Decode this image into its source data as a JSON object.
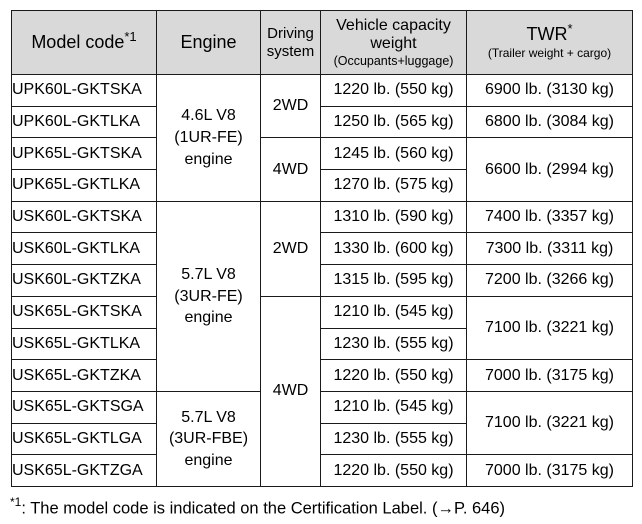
{
  "table": {
    "headers": {
      "model_code": "Model code",
      "model_code_mark": "*1",
      "engine": "Engine",
      "driving_line1": "Driving",
      "driving_line2": "system",
      "capacity_line1": "Vehicle capacity",
      "capacity_line2": "weight",
      "capacity_note": "(Occupants+luggage)",
      "twr": "TWR",
      "twr_mark": "*",
      "twr_note": "(Trailer weight + cargo)"
    },
    "engines": [
      {
        "line1": "4.6L V8",
        "line2": "(1UR-FE)",
        "line3": "engine"
      },
      {
        "line1": "5.7L V8",
        "line2": "(3UR-FE)",
        "line3": "engine"
      },
      {
        "line1": "5.7L V8",
        "line2": "(3UR-FBE)",
        "line3": "engine"
      }
    ],
    "driving": [
      "2WD",
      "4WD",
      "2WD",
      "4WD"
    ],
    "rows": [
      {
        "model": "UPK60L-GKTSKA",
        "capacity": "1220 lb. (550 kg)"
      },
      {
        "model": "UPK60L-GKTLKA",
        "capacity": "1250 lb. (565 kg)"
      },
      {
        "model": "UPK65L-GKTSKA",
        "capacity": "1245 lb. (560 kg)"
      },
      {
        "model": "UPK65L-GKTLKA",
        "capacity": "1270 lb. (575 kg)"
      },
      {
        "model": "USK60L-GKTSKA",
        "capacity": "1310 lb. (590 kg)"
      },
      {
        "model": "USK60L-GKTLKA",
        "capacity": "1330 lb. (600 kg)"
      },
      {
        "model": "USK60L-GKTZKA",
        "capacity": "1315 lb. (595 kg)"
      },
      {
        "model": "USK65L-GKTSKA",
        "capacity": "1210 lb. (545 kg)"
      },
      {
        "model": "USK65L-GKTLKA",
        "capacity": "1230 lb. (555 kg)"
      },
      {
        "model": "USK65L-GKTZKA",
        "capacity": "1220 lb. (550 kg)"
      },
      {
        "model": "USK65L-GKTSGA",
        "capacity": "1210 lb. (545 kg)"
      },
      {
        "model": "USK65L-GKTLGA",
        "capacity": "1230 lb. (555 kg)"
      },
      {
        "model": "USK65L-GKTZGA",
        "capacity": "1220 lb. (550 kg)"
      }
    ],
    "twr": [
      "6900 lb. (3130 kg)",
      "6800 lb. (3084 kg)",
      "6600 lb. (2994 kg)",
      "7400 lb. (3357 kg)",
      "7300 lb. (3311 kg)",
      "7200 lb. (3266 kg)",
      "7100 lb. (3221 kg)",
      "7000 lb. (3175 kg)",
      "7100 lb. (3221 kg)",
      "7000 lb. (3175 kg)"
    ]
  },
  "footnote": {
    "mark": "*1",
    "text": ": The model code is indicated on the Certification Label. (",
    "arrow": "→",
    "page_ref": "P. 646",
    "close": ")"
  },
  "colors": {
    "header_background": "#d9d9d9",
    "border": "#1a1a1a",
    "text": "#000000"
  }
}
